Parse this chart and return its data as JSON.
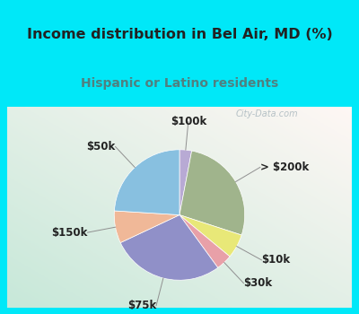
{
  "title": "Income distribution in Bel Air, MD (%)",
  "subtitle": "Hispanic or Latino residents",
  "watermark": "City-Data.com",
  "slices": [
    {
      "label": "$100k",
      "value": 3,
      "color": "#b8aad4"
    },
    {
      "label": "> $200k",
      "value": 27,
      "color": "#a0b48c"
    },
    {
      "label": "$10k",
      "value": 6,
      "color": "#e8e878"
    },
    {
      "label": "$30k",
      "value": 4,
      "color": "#e8a0a8"
    },
    {
      "label": "$75k",
      "value": 28,
      "color": "#9090c8"
    },
    {
      "label": "$150k",
      "value": 8,
      "color": "#f0b898"
    },
    {
      "label": "$50k",
      "value": 24,
      "color": "#88c0e0"
    }
  ],
  "title_fontsize": 11.5,
  "subtitle_fontsize": 10,
  "label_fontsize": 8.5,
  "bg_cyan": "#00e8f8",
  "title_color": "#222222",
  "subtitle_color": "#508080",
  "watermark_color": "#a0b0b8",
  "start_angle": 90
}
